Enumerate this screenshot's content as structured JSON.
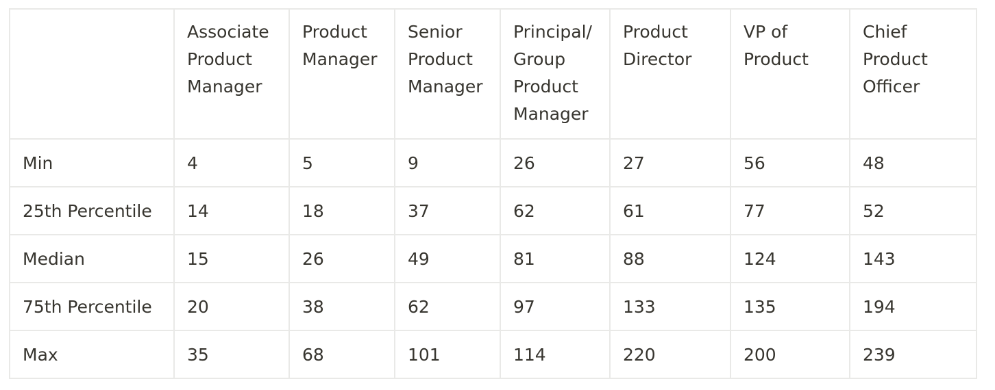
{
  "table": {
    "corner": "",
    "columns": [
      "Associate Product Manager",
      "Product Manager",
      "Senior Product Manager",
      "Principal/ Group Product Manager",
      "Product Director",
      "VP of Product",
      "Chief Product Officer"
    ],
    "rows": [
      {
        "label": "Min",
        "values": [
          "4",
          "5",
          "9",
          "26",
          "27",
          "56",
          "48"
        ]
      },
      {
        "label": "25th Percentile",
        "values": [
          "14",
          "18",
          "37",
          "62",
          "61",
          "77",
          "52"
        ]
      },
      {
        "label": "Median",
        "values": [
          "15",
          "26",
          "49",
          "81",
          "88",
          "124",
          "143"
        ]
      },
      {
        "label": "75th Percentile",
        "values": [
          "20",
          "38",
          "62",
          "97",
          "133",
          "135",
          "194"
        ]
      },
      {
        "label": "Max",
        "values": [
          "35",
          "68",
          "101",
          "114",
          "220",
          "200",
          "239"
        ]
      }
    ]
  }
}
